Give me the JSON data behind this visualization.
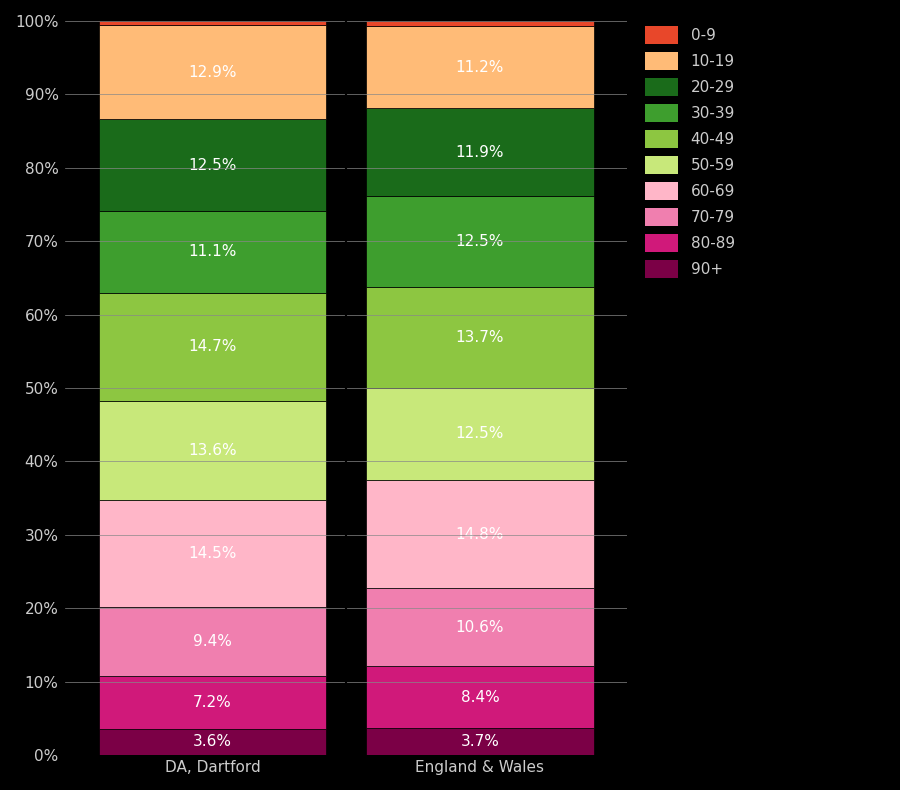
{
  "categories": [
    "DA, Dartford",
    "England & Wales"
  ],
  "age_groups_bottom_to_top": [
    "90+",
    "80-89",
    "70-79",
    "60-69",
    "50-59",
    "40-49",
    "30-39",
    "20-29",
    "10-19",
    "0-9"
  ],
  "colors": {
    "0-9": "#E8472A",
    "10-19": "#FFBB77",
    "20-29": "#1A6B1A",
    "30-39": "#3E9E2E",
    "40-49": "#8DC641",
    "50-59": "#C8E87A",
    "60-69": "#FFB6C8",
    "70-79": "#F07FAF",
    "80-89": "#D0197A",
    "90+": "#7B0046"
  },
  "values": {
    "DA, Dartford": {
      "90+": 3.6,
      "80-89": 7.2,
      "70-79": 9.4,
      "60-69": 14.5,
      "50-59": 13.6,
      "40-49": 14.7,
      "30-39": 11.1,
      "20-29": 12.5,
      "10-19": 12.9,
      "0-9": 0.5
    },
    "England & Wales": {
      "90+": 3.7,
      "80-89": 8.4,
      "70-79": 10.6,
      "60-69": 14.8,
      "50-59": 12.5,
      "40-49": 13.7,
      "30-39": 12.5,
      "20-29": 11.9,
      "10-19": 11.2,
      "0-9": 0.7
    }
  },
  "labels": {
    "DA, Dartford": {
      "90+": "3.6%",
      "80-89": "7.2%",
      "70-79": "9.4%",
      "60-69": "14.5%",
      "50-59": "13.6%",
      "40-49": "14.7%",
      "30-39": "11.1%",
      "20-29": "12.5%",
      "10-19": "12.9%",
      "0-9": ""
    },
    "England & Wales": {
      "90+": "3.7%",
      "80-89": "8.4%",
      "70-79": "10.6%",
      "60-69": "14.8%",
      "50-59": "12.5%",
      "40-49": "13.7%",
      "30-39": "12.5%",
      "20-29": "11.9%",
      "10-19": "11.2%",
      "0-9": ""
    }
  },
  "background_color": "#000000",
  "text_color": "#cccccc",
  "bar_width": 0.85,
  "ylim": [
    0,
    100
  ],
  "yticks": [
    0,
    10,
    20,
    30,
    40,
    50,
    60,
    70,
    80,
    90,
    100
  ],
  "ytick_labels": [
    "0%",
    "10%",
    "20%",
    "30%",
    "40%",
    "50%",
    "60%",
    "70%",
    "80%",
    "90%",
    "100%"
  ],
  "label_fontsize": 11,
  "legend_fontsize": 11,
  "tick_fontsize": 11,
  "legend_order": [
    "0-9",
    "10-19",
    "20-29",
    "30-39",
    "40-49",
    "50-59",
    "60-69",
    "70-79",
    "80-89",
    "90+"
  ]
}
